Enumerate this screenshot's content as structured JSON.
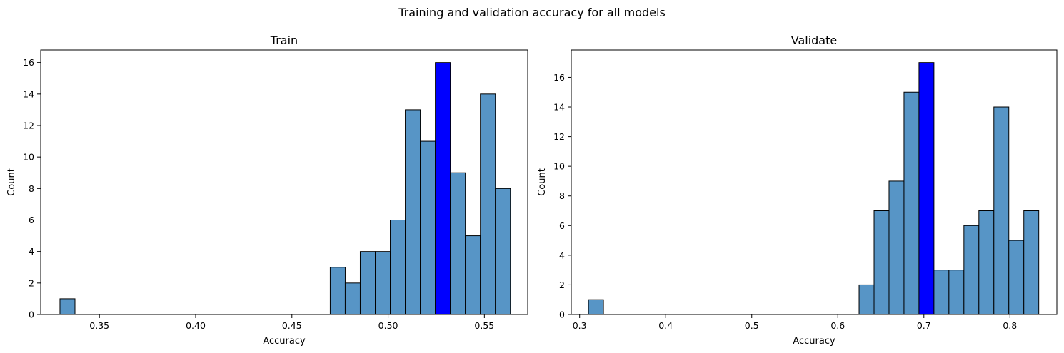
{
  "figure": {
    "title": "Training and validation accuracy for all models"
  },
  "chart_data": [
    {
      "type": "bar",
      "subtype": "histogram",
      "title": "Train",
      "xlabel": "Accuracy",
      "ylabel": "Count",
      "xlim": [
        0.3195,
        0.5725
      ],
      "ylim": [
        0,
        16.8
      ],
      "xticks": [
        0.35,
        0.4,
        0.45,
        0.5,
        0.55
      ],
      "xtick_labels": [
        "0.35",
        "0.40",
        "0.45",
        "0.50",
        "0.55"
      ],
      "yticks": [
        0,
        2,
        4,
        6,
        8,
        10,
        12,
        14,
        16
      ],
      "ytick_labels": [
        "0",
        "2",
        "4",
        "6",
        "8",
        "10",
        "12",
        "14",
        "16"
      ],
      "bin_width": 0.0078,
      "bins": [
        {
          "start": 0.3295,
          "count": 1,
          "highlight": false
        },
        {
          "start": 0.4699,
          "count": 3,
          "highlight": false
        },
        {
          "start": 0.4777,
          "count": 2,
          "highlight": false
        },
        {
          "start": 0.4855,
          "count": 4,
          "highlight": false
        },
        {
          "start": 0.4933,
          "count": 4,
          "highlight": false
        },
        {
          "start": 0.5011,
          "count": 6,
          "highlight": false
        },
        {
          "start": 0.5089,
          "count": 13,
          "highlight": false
        },
        {
          "start": 0.5167,
          "count": 11,
          "highlight": false
        },
        {
          "start": 0.5245,
          "count": 16,
          "highlight": true
        },
        {
          "start": 0.5323,
          "count": 9,
          "highlight": false
        },
        {
          "start": 0.5401,
          "count": 5,
          "highlight": false
        },
        {
          "start": 0.5479,
          "count": 14,
          "highlight": false
        },
        {
          "start": 0.5557,
          "count": 8,
          "highlight": false
        }
      ],
      "bar_color": "#5795c6",
      "highlight_color": "#0000ff",
      "grid": false
    },
    {
      "type": "bar",
      "subtype": "histogram",
      "title": "Validate",
      "xlabel": "Accuracy",
      "ylabel": "Count",
      "xlim": [
        0.2903,
        0.8545
      ],
      "ylim": [
        0,
        17.85
      ],
      "xticks": [
        0.3,
        0.4,
        0.5,
        0.6,
        0.7,
        0.8
      ],
      "xtick_labels": [
        "0.3",
        "0.4",
        "0.5",
        "0.6",
        "0.7",
        "0.8"
      ],
      "yticks": [
        0,
        2,
        4,
        6,
        8,
        10,
        12,
        14,
        16
      ],
      "ytick_labels": [
        "0",
        "2",
        "4",
        "6",
        "8",
        "10",
        "12",
        "14",
        "16"
      ],
      "bin_width": 0.0174,
      "bins": [
        {
          "start": 0.3103,
          "count": 1,
          "highlight": false
        },
        {
          "start": 0.6247,
          "count": 2,
          "highlight": false
        },
        {
          "start": 0.6421,
          "count": 7,
          "highlight": false
        },
        {
          "start": 0.6595,
          "count": 9,
          "highlight": false
        },
        {
          "start": 0.6769,
          "count": 15,
          "highlight": false
        },
        {
          "start": 0.6943,
          "count": 17,
          "highlight": true
        },
        {
          "start": 0.7117,
          "count": 3,
          "highlight": false
        },
        {
          "start": 0.7291,
          "count": 3,
          "highlight": false
        },
        {
          "start": 0.7465,
          "count": 6,
          "highlight": false
        },
        {
          "start": 0.7639,
          "count": 7,
          "highlight": false
        },
        {
          "start": 0.7813,
          "count": 14,
          "highlight": false
        },
        {
          "start": 0.7987,
          "count": 5,
          "highlight": false
        },
        {
          "start": 0.8161,
          "count": 7,
          "highlight": false
        }
      ],
      "bar_color": "#5795c6",
      "highlight_color": "#0000ff",
      "grid": false
    }
  ]
}
